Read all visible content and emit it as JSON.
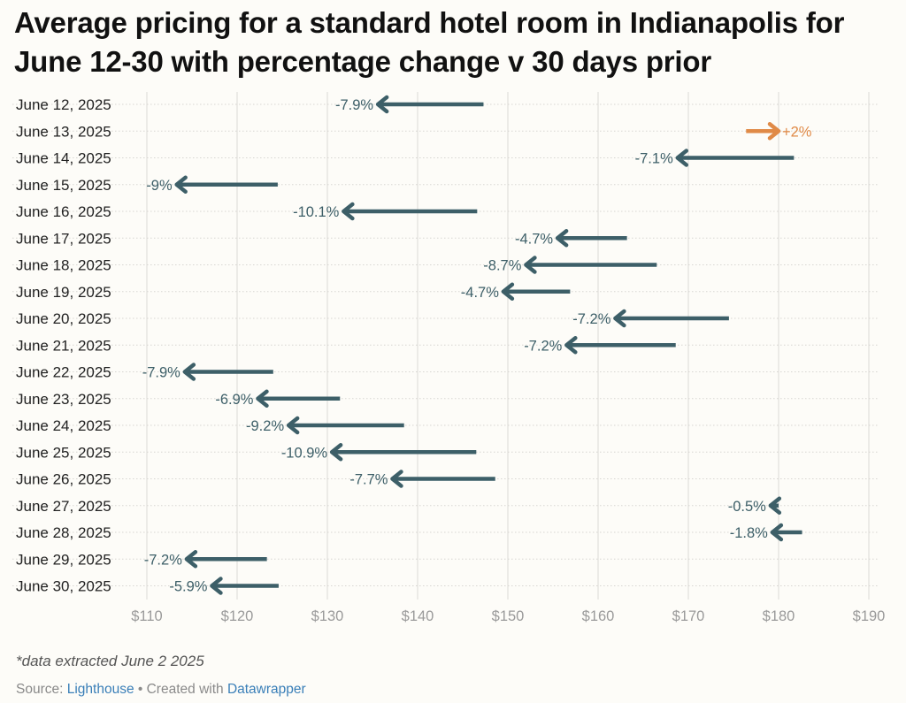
{
  "title": "Average pricing for a standard hotel room in Indianapolis for June 12-30 with percentage change v 30 days prior",
  "footnote": "*data extracted June 2 2025",
  "source": {
    "prefix": "Source: ",
    "source_name": "Lighthouse",
    "separator": " • Created with ",
    "tool_name": "Datawrapper"
  },
  "colors": {
    "decrease": "#3d5f68",
    "increase": "#e08a47",
    "grid": "#e2e0dc",
    "row_divider": "#d8d6d2"
  },
  "chart_data": {
    "type": "arrow",
    "xlim": [
      110,
      190
    ],
    "ticks": [
      110,
      120,
      130,
      140,
      150,
      160,
      170,
      180,
      190
    ],
    "tick_labels": [
      "$110",
      "$120",
      "$130",
      "$140",
      "$150",
      "$160",
      "$170",
      "$180",
      "$190"
    ],
    "grid": true,
    "rows": [
      {
        "label": "June 12, 2025",
        "from": 147.3,
        "to": 135.6,
        "change": "-7.9%"
      },
      {
        "label": "June 13, 2025",
        "from": 176.4,
        "to": 180.0,
        "change": "+2%"
      },
      {
        "label": "June 14, 2025",
        "from": 181.7,
        "to": 168.8,
        "change": "-7.1%"
      },
      {
        "label": "June 15, 2025",
        "from": 124.5,
        "to": 113.3,
        "change": "-9%"
      },
      {
        "label": "June 16, 2025",
        "from": 146.6,
        "to": 131.8,
        "change": "-10.1%"
      },
      {
        "label": "June 17, 2025",
        "from": 163.2,
        "to": 155.5,
        "change": "-4.7%"
      },
      {
        "label": "June 18, 2025",
        "from": 166.5,
        "to": 152.0,
        "change": "-8.7%"
      },
      {
        "label": "June 19, 2025",
        "from": 156.9,
        "to": 149.5,
        "change": "-4.7%"
      },
      {
        "label": "June 20, 2025",
        "from": 174.5,
        "to": 161.9,
        "change": "-7.2%"
      },
      {
        "label": "June 21, 2025",
        "from": 168.6,
        "to": 156.5,
        "change": "-7.2%"
      },
      {
        "label": "June 22, 2025",
        "from": 124.0,
        "to": 114.2,
        "change": "-7.9%"
      },
      {
        "label": "June 23, 2025",
        "from": 131.4,
        "to": 122.3,
        "change": "-6.9%"
      },
      {
        "label": "June 24, 2025",
        "from": 138.5,
        "to": 125.7,
        "change": "-9.2%"
      },
      {
        "label": "June 25, 2025",
        "from": 146.5,
        "to": 130.5,
        "change": "-10.9%"
      },
      {
        "label": "June 26, 2025",
        "from": 148.6,
        "to": 137.2,
        "change": "-7.7%"
      },
      {
        "label": "June 27, 2025",
        "from": 180.0,
        "to": 179.1,
        "change": "-0.5%"
      },
      {
        "label": "June 28, 2025",
        "from": 182.6,
        "to": 179.3,
        "change": "-1.8%"
      },
      {
        "label": "June 29, 2025",
        "from": 123.3,
        "to": 114.4,
        "change": "-7.2%"
      },
      {
        "label": "June 30, 2025",
        "from": 124.6,
        "to": 117.2,
        "change": "-5.9%"
      }
    ]
  }
}
